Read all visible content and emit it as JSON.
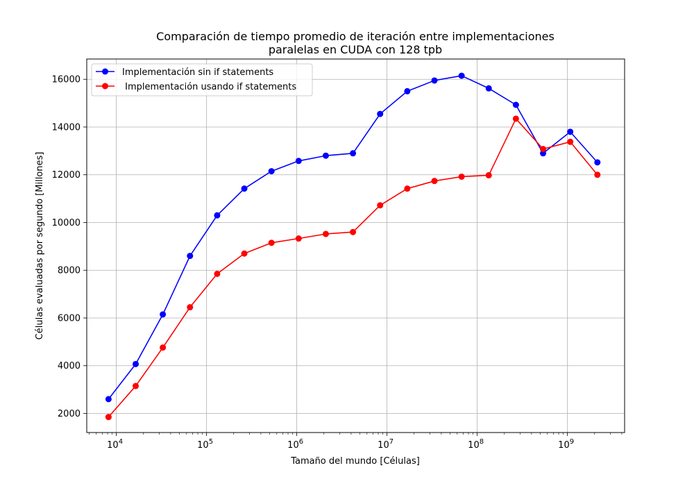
{
  "chart_data": {
    "type": "line",
    "title_lines": [
      "Comparación de tiempo promedio de iteración entre implementaciones",
      "paralelas en CUDA con 128 tpb"
    ],
    "xlabel": "Tamaño del mundo [Células]",
    "ylabel": "Células evaluadas por segundo [Millones]",
    "x_scale": "log",
    "xlim": [
      4700,
      4300000000
    ],
    "ylim": [
      1200,
      16850
    ],
    "grid": true,
    "legend_position": "upper-left",
    "x_ticks": [
      {
        "value": 10000,
        "base": "10",
        "exp": "4"
      },
      {
        "value": 100000,
        "base": "10",
        "exp": "5"
      },
      {
        "value": 1000000,
        "base": "10",
        "exp": "6"
      },
      {
        "value": 10000000,
        "base": "10",
        "exp": "7"
      },
      {
        "value": 100000000,
        "base": "10",
        "exp": "8"
      },
      {
        "value": 1000000000,
        "base": "10",
        "exp": "9"
      }
    ],
    "y_ticks": [
      2000,
      4000,
      6000,
      8000,
      10000,
      12000,
      14000,
      16000
    ],
    "x": [
      8192,
      16384,
      32768,
      65536,
      131072,
      262144,
      524288,
      1048576,
      2097152,
      4194304,
      8388608,
      16777216,
      33554432,
      67108864,
      134217728,
      268435456,
      536870912,
      1073741824,
      2147483648
    ],
    "series": [
      {
        "name": "Implementación sin if statements",
        "color": "#0000ff",
        "values": [
          2600,
          4070,
          6150,
          8600,
          10300,
          11420,
          12150,
          12580,
          12800,
          12900,
          14550,
          15500,
          15950,
          16150,
          15620,
          14930,
          12900,
          13800,
          12520
        ]
      },
      {
        "name": " Implementación usando if statements",
        "color": "#ff0000",
        "values": [
          1850,
          3150,
          4760,
          6450,
          7850,
          8700,
          9150,
          9330,
          9520,
          9600,
          10720,
          11420,
          11740,
          11920,
          11980,
          14350,
          13080,
          13380,
          12000
        ]
      }
    ]
  }
}
